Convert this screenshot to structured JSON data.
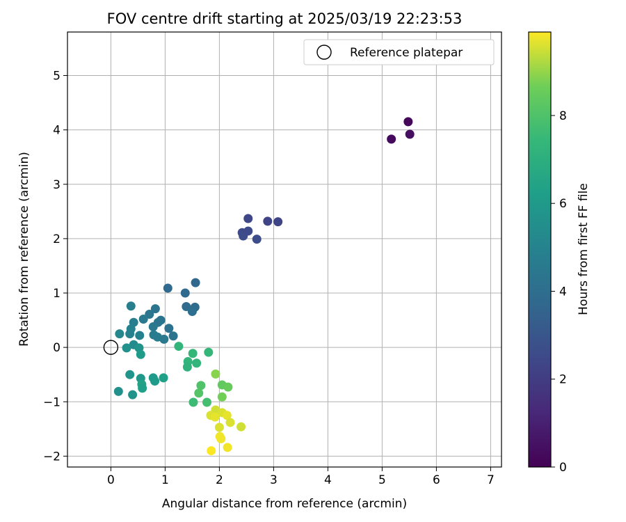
{
  "chart_data": {
    "type": "scatter",
    "title": "FOV centre drift starting at 2025/03/19 22:23:53",
    "xlabel": "Angular distance from reference (arcmin)",
    "ylabel": "Rotation from reference (arcmin)",
    "xlim": [
      -0.8,
      7.2
    ],
    "ylim": [
      -2.2,
      5.8
    ],
    "xticks": [
      0,
      1,
      2,
      3,
      4,
      5,
      6,
      7
    ],
    "yticks": [
      -2,
      -1,
      0,
      1,
      2,
      3,
      4,
      5
    ],
    "grid": true,
    "legend": {
      "placement": "top-right",
      "entries": [
        "Reference platepar"
      ]
    },
    "reference_point": {
      "x": 0,
      "y": 0,
      "label": "Reference platepar"
    },
    "colorbar": {
      "label": "Hours from first FF file",
      "colormap": "viridis",
      "range": [
        0,
        9.9
      ],
      "ticks": [
        0,
        2,
        4,
        6,
        8
      ]
    },
    "points": [
      {
        "x": 5.48,
        "y": 4.15,
        "h": 0.2
      },
      {
        "x": 5.17,
        "y": 3.83,
        "h": 0.3
      },
      {
        "x": 5.51,
        "y": 3.92,
        "h": 0.4
      },
      {
        "x": 2.53,
        "y": 2.37,
        "h": 2.4
      },
      {
        "x": 2.89,
        "y": 2.32,
        "h": 2.3
      },
      {
        "x": 3.08,
        "y": 2.31,
        "h": 2.3
      },
      {
        "x": 2.42,
        "y": 2.11,
        "h": 2.5
      },
      {
        "x": 2.53,
        "y": 2.14,
        "h": 2.5
      },
      {
        "x": 2.44,
        "y": 2.05,
        "h": 2.6
      },
      {
        "x": 2.69,
        "y": 1.99,
        "h": 2.6
      },
      {
        "x": 1.56,
        "y": 1.19,
        "h": 3.7
      },
      {
        "x": 1.05,
        "y": 1.09,
        "h": 3.8
      },
      {
        "x": 1.37,
        "y": 1.0,
        "h": 3.8
      },
      {
        "x": 1.39,
        "y": 0.75,
        "h": 3.9
      },
      {
        "x": 1.55,
        "y": 0.74,
        "h": 3.9
      },
      {
        "x": 1.5,
        "y": 0.66,
        "h": 4.0
      },
      {
        "x": 0.37,
        "y": 0.76,
        "h": 4.8
      },
      {
        "x": 0.82,
        "y": 0.71,
        "h": 4.3
      },
      {
        "x": 0.71,
        "y": 0.61,
        "h": 4.4
      },
      {
        "x": 0.6,
        "y": 0.52,
        "h": 4.5
      },
      {
        "x": 0.92,
        "y": 0.5,
        "h": 4.3
      },
      {
        "x": 0.42,
        "y": 0.46,
        "h": 4.7
      },
      {
        "x": 0.87,
        "y": 0.46,
        "h": 4.4
      },
      {
        "x": 0.78,
        "y": 0.38,
        "h": 4.5
      },
      {
        "x": 1.07,
        "y": 0.35,
        "h": 4.2
      },
      {
        "x": 0.37,
        "y": 0.34,
        "h": 4.9
      },
      {
        "x": 0.35,
        "y": 0.25,
        "h": 5.0
      },
      {
        "x": 0.16,
        "y": 0.25,
        "h": 5.2
      },
      {
        "x": 0.79,
        "y": 0.23,
        "h": 4.6
      },
      {
        "x": 0.53,
        "y": 0.22,
        "h": 4.9
      },
      {
        "x": 1.15,
        "y": 0.21,
        "h": 4.3
      },
      {
        "x": 0.86,
        "y": 0.19,
        "h": 4.6
      },
      {
        "x": 0.98,
        "y": 0.15,
        "h": 4.5
      },
      {
        "x": 0.42,
        "y": 0.05,
        "h": 5.3
      },
      {
        "x": 0.29,
        "y": -0.01,
        "h": 5.6
      },
      {
        "x": 0.52,
        "y": -0.01,
        "h": 5.7
      },
      {
        "x": 0.55,
        "y": -0.13,
        "h": 6.1
      },
      {
        "x": 0.35,
        "y": -0.5,
        "h": 5.8
      },
      {
        "x": 0.55,
        "y": -0.57,
        "h": 5.9
      },
      {
        "x": 0.78,
        "y": -0.56,
        "h": 6.0
      },
      {
        "x": 0.97,
        "y": -0.56,
        "h": 6.3
      },
      {
        "x": 0.81,
        "y": -0.62,
        "h": 6.1
      },
      {
        "x": 0.57,
        "y": -0.68,
        "h": 6.4
      },
      {
        "x": 0.58,
        "y": -0.75,
        "h": 6.3
      },
      {
        "x": 0.14,
        "y": -0.81,
        "h": 5.6
      },
      {
        "x": 0.4,
        "y": -0.87,
        "h": 5.7
      },
      {
        "x": 1.25,
        "y": 0.02,
        "h": 7.3
      },
      {
        "x": 1.8,
        "y": -0.09,
        "h": 7.4
      },
      {
        "x": 1.51,
        "y": -0.11,
        "h": 7.4
      },
      {
        "x": 1.42,
        "y": -0.26,
        "h": 7.3
      },
      {
        "x": 1.58,
        "y": -0.29,
        "h": 7.3
      },
      {
        "x": 1.41,
        "y": -0.36,
        "h": 7.2
      },
      {
        "x": 1.93,
        "y": -0.49,
        "h": 8.9
      },
      {
        "x": 1.66,
        "y": -0.7,
        "h": 8.0
      },
      {
        "x": 2.05,
        "y": -0.69,
        "h": 8.4
      },
      {
        "x": 2.16,
        "y": -0.73,
        "h": 8.5
      },
      {
        "x": 1.62,
        "y": -0.84,
        "h": 8.1
      },
      {
        "x": 2.05,
        "y": -0.91,
        "h": 8.7
      },
      {
        "x": 1.52,
        "y": -1.01,
        "h": 7.6
      },
      {
        "x": 1.77,
        "y": -1.01,
        "h": 7.8
      },
      {
        "x": 1.93,
        "y": -1.15,
        "h": 9.5
      },
      {
        "x": 2.05,
        "y": -1.2,
        "h": 9.6
      },
      {
        "x": 1.84,
        "y": -1.25,
        "h": 9.6
      },
      {
        "x": 2.14,
        "y": -1.25,
        "h": 9.7
      },
      {
        "x": 1.92,
        "y": -1.28,
        "h": 9.7
      },
      {
        "x": 2.2,
        "y": -1.38,
        "h": 9.6
      },
      {
        "x": 2.4,
        "y": -1.46,
        "h": 9.5
      },
      {
        "x": 2.0,
        "y": -1.47,
        "h": 9.6
      },
      {
        "x": 2.01,
        "y": -1.64,
        "h": 9.8
      },
      {
        "x": 2.03,
        "y": -1.68,
        "h": 9.8
      },
      {
        "x": 2.15,
        "y": -1.84,
        "h": 9.8
      },
      {
        "x": 1.85,
        "y": -1.9,
        "h": 9.9
      }
    ]
  }
}
